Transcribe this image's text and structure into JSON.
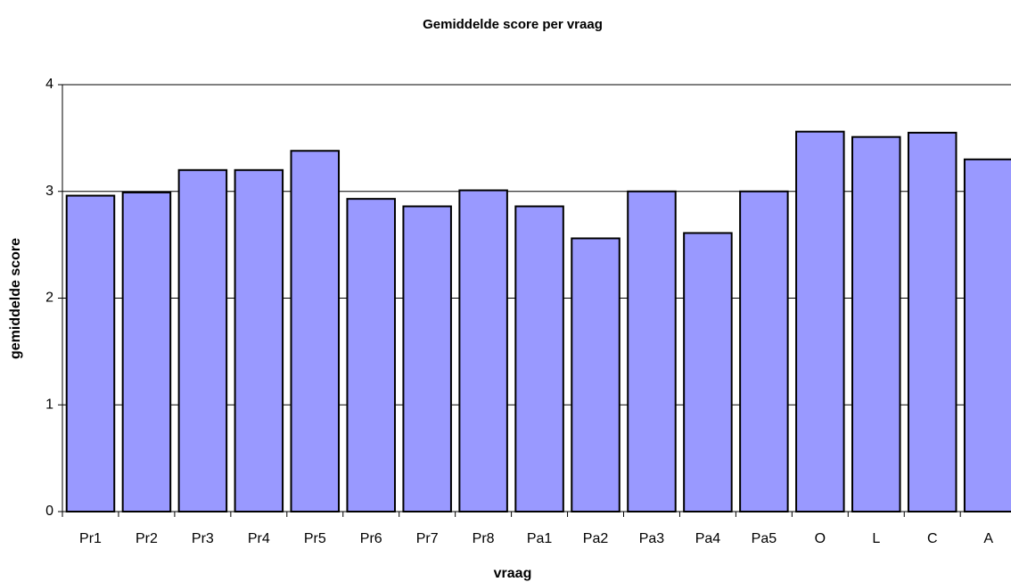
{
  "chart_data": {
    "type": "bar",
    "title": "Gemiddelde score per vraag",
    "x_label": "vraag",
    "y_label": "gemiddelde score",
    "categories": [
      "Pr1",
      "Pr2",
      "Pr3",
      "Pr4",
      "Pr5",
      "Pr6",
      "Pr7",
      "Pr8",
      "Pa1",
      "Pa2",
      "Pa3",
      "Pa4",
      "Pa5",
      "O",
      "L",
      "C",
      "A"
    ],
    "values": [
      2.96,
      2.99,
      3.2,
      3.2,
      3.38,
      2.93,
      2.86,
      3.01,
      2.86,
      2.56,
      3.0,
      2.61,
      3.0,
      3.56,
      3.51,
      3.55,
      3.3
    ],
    "color": "#9999ff",
    "ylim": [
      0,
      4
    ],
    "yticks": [
      0,
      1,
      2,
      3,
      4
    ],
    "grid": true
  }
}
